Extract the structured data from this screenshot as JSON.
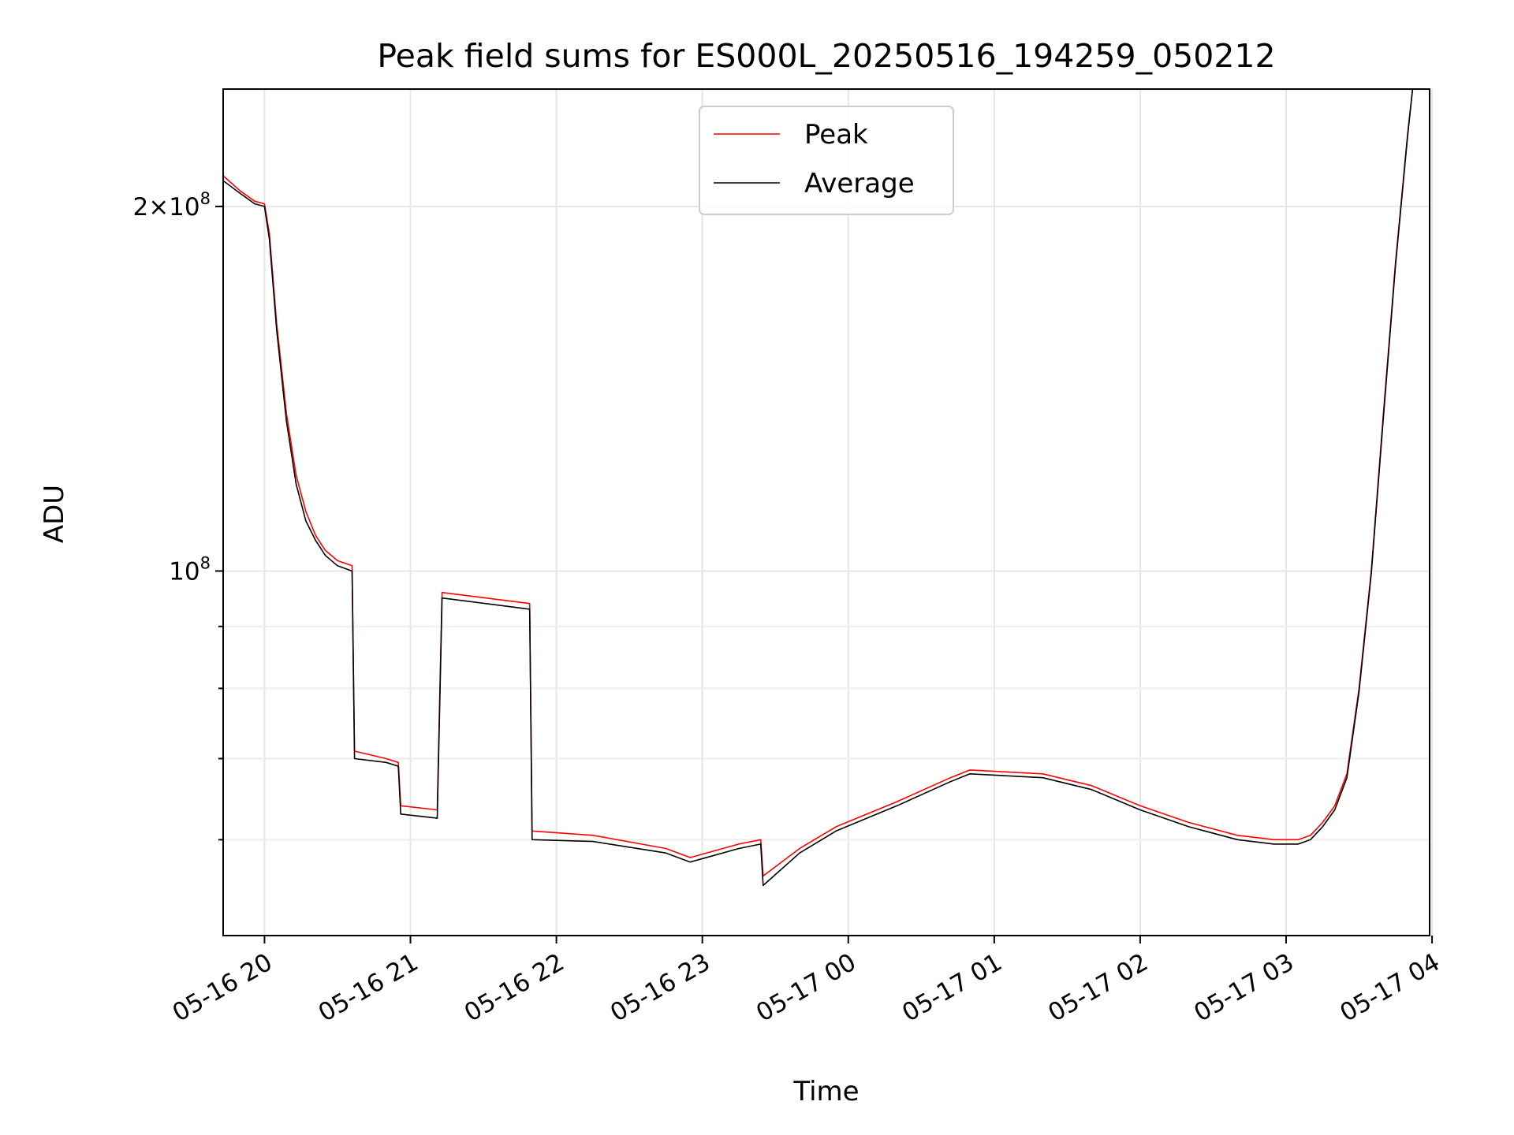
{
  "chart_data": {
    "type": "line",
    "title": "Peak field sums for ES000L_20250516_194259_050212",
    "xlabel": "Time",
    "ylabel": "ADU",
    "yscale": "log",
    "ylim": [
      50000000,
      250000000
    ],
    "xlim": [
      "05-16 19:43",
      "05-17 03:59"
    ],
    "x_ticks": [
      "05-16 20",
      "05-16 21",
      "05-16 22",
      "05-16 23",
      "05-17 00",
      "05-17 01",
      "05-17 02",
      "05-17 03",
      "05-17 04"
    ],
    "y_ticks": [
      {
        "value": 200000000,
        "mantissa": "2",
        "exponent": "8"
      },
      {
        "value": 100000000,
        "mantissa": "",
        "exponent": "8"
      }
    ],
    "grid": true,
    "legend": "top-center",
    "series": [
      {
        "name": "Peak",
        "color": "#ff0000",
        "x": [
          "05-16 19:43",
          "05-16 19:50",
          "05-16 19:56",
          "05-16 20:00",
          "05-16 20:02",
          "05-16 20:05",
          "05-16 20:09",
          "05-16 20:13",
          "05-16 20:17",
          "05-16 20:21",
          "05-16 20:25",
          "05-16 20:30",
          "05-16 20:36",
          "05-16 20:37",
          "05-16 20:50",
          "05-16 20:55",
          "05-16 20:56",
          "05-16 21:11",
          "05-16 21:13",
          "05-16 21:40",
          "05-16 21:49",
          "05-16 21:50",
          "05-16 22:15",
          "05-16 22:45",
          "05-16 22:55",
          "05-16 23:15",
          "05-16 23:24",
          "05-16 23:25",
          "05-16 23:40",
          "05-16 23:55",
          "05-17 00:20",
          "05-17 00:42",
          "05-17 00:50",
          "05-17 01:20",
          "05-17 01:40",
          "05-17 02:00",
          "05-17 02:20",
          "05-17 02:40",
          "05-17 02:55",
          "05-17 03:05",
          "05-17 03:10",
          "05-17 03:15",
          "05-17 03:20",
          "05-17 03:25",
          "05-17 03:30",
          "05-17 03:35",
          "05-17 03:40",
          "05-17 03:45",
          "05-17 03:50",
          "05-17 03:52",
          "05-17 03:59"
        ],
        "values": [
          212000000,
          206000000,
          202000000,
          201000000,
          190000000,
          160000000,
          135000000,
          120000000,
          112000000,
          107000000,
          104000000,
          102000000,
          101000000,
          71000000,
          70000000,
          69500000,
          64000000,
          63500000,
          96000000,
          94500000,
          94000000,
          61000000,
          60500000,
          59000000,
          58000000,
          59500000,
          60000000,
          56000000,
          59000000,
          61500000,
          64500000,
          67500000,
          68500000,
          68000000,
          66500000,
          64000000,
          62000000,
          60500000,
          60000000,
          60000000,
          60500000,
          62000000,
          64000000,
          68000000,
          80000000,
          100000000,
          135000000,
          180000000,
          230000000,
          250000000,
          250000000
        ]
      },
      {
        "name": "Average",
        "color": "#000000",
        "x": [
          "05-16 19:43",
          "05-16 19:50",
          "05-16 19:56",
          "05-16 20:00",
          "05-16 20:02",
          "05-16 20:05",
          "05-16 20:09",
          "05-16 20:13",
          "05-16 20:17",
          "05-16 20:21",
          "05-16 20:25",
          "05-16 20:30",
          "05-16 20:36",
          "05-16 20:37",
          "05-16 20:50",
          "05-16 20:55",
          "05-16 20:56",
          "05-16 21:11",
          "05-16 21:13",
          "05-16 21:40",
          "05-16 21:49",
          "05-16 21:50",
          "05-16 22:15",
          "05-16 22:45",
          "05-16 22:55",
          "05-16 23:15",
          "05-16 23:24",
          "05-16 23:25",
          "05-16 23:40",
          "05-16 23:55",
          "05-17 00:20",
          "05-17 00:42",
          "05-17 00:50",
          "05-17 01:20",
          "05-17 01:40",
          "05-17 02:00",
          "05-17 02:20",
          "05-17 02:40",
          "05-17 02:55",
          "05-17 03:05",
          "05-17 03:10",
          "05-17 03:15",
          "05-17 03:20",
          "05-17 03:25",
          "05-17 03:30",
          "05-17 03:35",
          "05-17 03:40",
          "05-17 03:45",
          "05-17 03:50",
          "05-17 03:52",
          "05-17 03:59"
        ],
        "values": [
          210000000,
          205000000,
          201000000,
          200000000,
          188000000,
          158000000,
          133000000,
          118000000,
          110000000,
          106000000,
          103000000,
          101000000,
          100000000,
          70000000,
          69500000,
          69000000,
          63000000,
          62500000,
          95000000,
          93500000,
          93000000,
          60000000,
          59800000,
          58500000,
          57500000,
          59000000,
          59500000,
          55000000,
          58500000,
          61000000,
          64000000,
          67000000,
          68000000,
          67500000,
          66000000,
          63500000,
          61500000,
          60000000,
          59500000,
          59500000,
          60000000,
          61500000,
          63500000,
          67500000,
          79500000,
          99500000,
          134000000,
          179000000,
          229000000,
          250000000,
          250000000
        ]
      }
    ]
  }
}
